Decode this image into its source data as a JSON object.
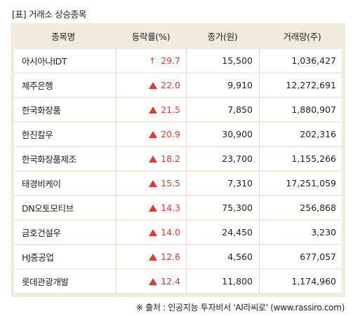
{
  "title": "[표] 거래소 상승종목",
  "columns": {
    "name": "종목명",
    "change": "등락률(%)",
    "price": "종가(원)",
    "volume": "거래량(주)"
  },
  "rows": [
    {
      "name": "아시아나IDT",
      "change": "29.7",
      "marker": "arrow-up",
      "price": "15,500",
      "volume": "1,036,427"
    },
    {
      "name": "제주은행",
      "change": "22.0",
      "marker": "triangle-up",
      "price": "9,910",
      "volume": "12,272,691"
    },
    {
      "name": "한국화장품",
      "change": "21.5",
      "marker": "triangle-up",
      "price": "7,850",
      "volume": "1,880,907"
    },
    {
      "name": "한진칼우",
      "change": "20.9",
      "marker": "triangle-up",
      "price": "30,900",
      "volume": "202,316"
    },
    {
      "name": "한국화장품제조",
      "change": "18.2",
      "marker": "triangle-up",
      "price": "23,700",
      "volume": "1,155,266"
    },
    {
      "name": "태경비케이",
      "change": "15.5",
      "marker": "triangle-up",
      "price": "7,310",
      "volume": "17,251,059"
    },
    {
      "name": "DN오토모티브",
      "change": "14.3",
      "marker": "triangle-up",
      "price": "75,300",
      "volume": "256,868"
    },
    {
      "name": "금호건설우",
      "change": "14.0",
      "marker": "triangle-up",
      "price": "24,450",
      "volume": "3,230"
    },
    {
      "name": "HJ중공업",
      "change": "12.6",
      "marker": "triangle-up",
      "price": "4,560",
      "volume": "677,057"
    },
    {
      "name": "롯데관광개발",
      "change": "12.4",
      "marker": "triangle-up",
      "price": "11,800",
      "volume": "1,174,960"
    }
  ],
  "source": "※ 출처 : 인공지능 투자비서 'AI라씨로' (www.rassiro.com)",
  "colors": {
    "up": "#e03a2c",
    "frame": "#f1ecde"
  }
}
